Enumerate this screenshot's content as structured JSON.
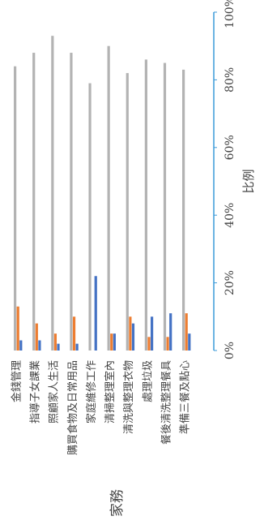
{
  "chart_data": {
    "type": "bar",
    "orientation": "rotated",
    "categories": [
      "金錢管理",
      "指導子女課業",
      "照顧家人生活",
      "購買食物及日常用品",
      "家庭維修工作",
      "清掃整理室內",
      "清洗與整理衣物",
      "處理垃圾",
      "餐後清洗整理餐具",
      "準備三餐及點心"
    ],
    "series": [
      {
        "color": "#b3b3b3",
        "values": [
          84,
          88,
          93,
          88,
          79,
          90,
          82,
          86,
          85,
          83
        ]
      },
      {
        "color": "#ed7d31",
        "values": [
          13,
          8,
          5,
          10,
          0,
          5,
          10,
          4,
          4,
          11
        ]
      },
      {
        "color": "#4472c4",
        "values": [
          3,
          3,
          2,
          2,
          22,
          5,
          8,
          10,
          11,
          5
        ]
      }
    ],
    "xlabel": "家務",
    "ylabel": "比例",
    "ylim": [
      0,
      100
    ],
    "yticks": [
      "0%",
      "20%",
      "40%",
      "60%",
      "80%",
      "100%"
    ],
    "colors": {
      "value_axis": "#3a9ad9",
      "text": "#444444"
    },
    "legend": "none",
    "grid": false
  }
}
